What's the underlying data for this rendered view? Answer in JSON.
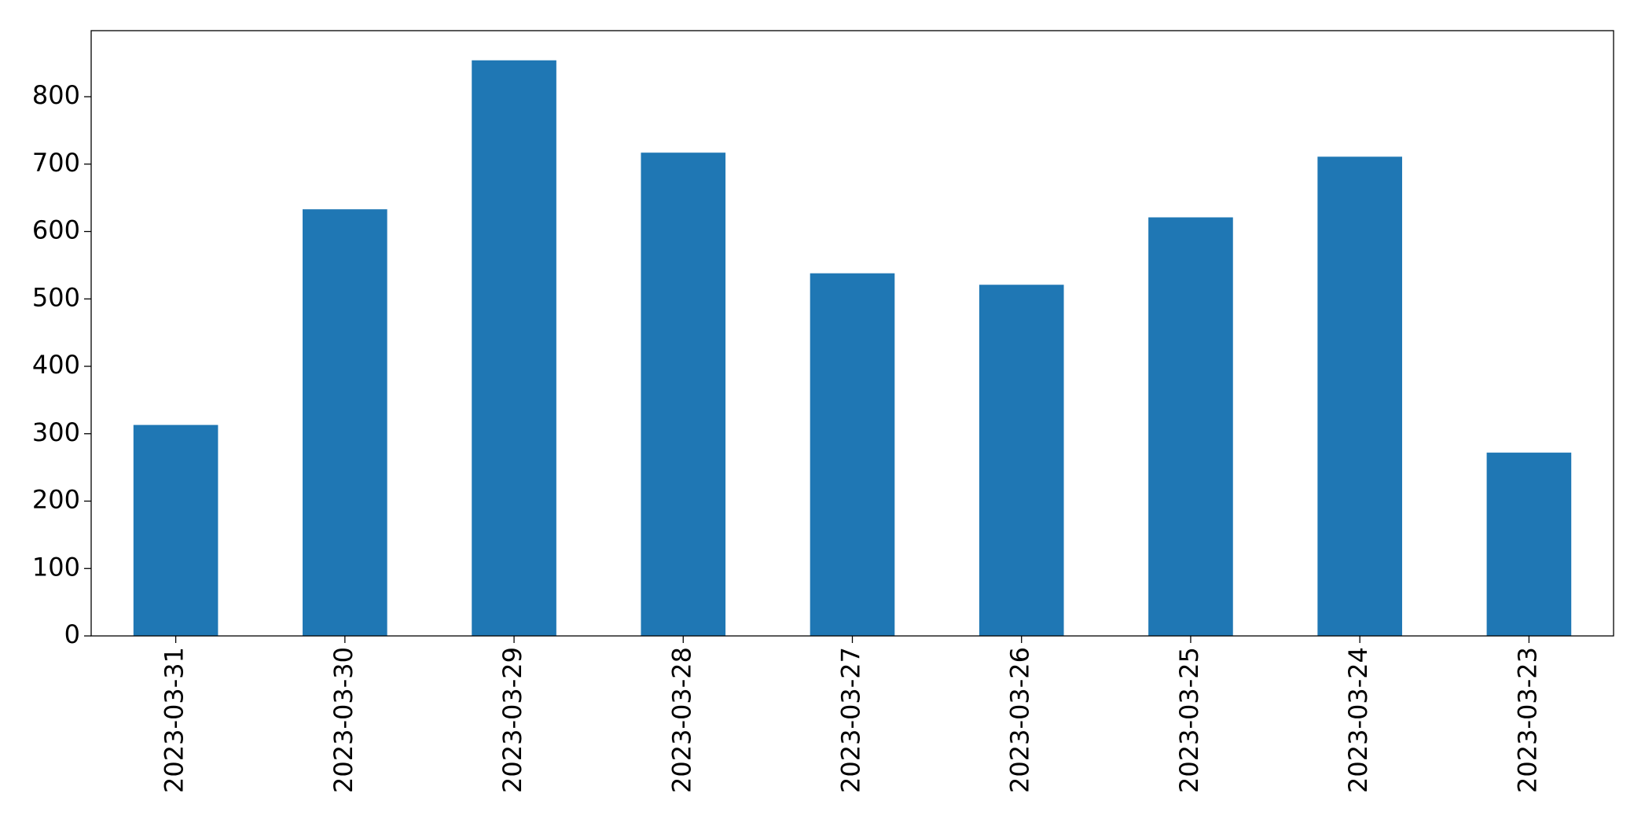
{
  "chart_data": {
    "type": "bar",
    "categories": [
      "2023-03-31",
      "2023-03-30",
      "2023-03-29",
      "2023-03-28",
      "2023-03-27",
      "2023-03-26",
      "2023-03-25",
      "2023-03-24",
      "2023-03-23"
    ],
    "values": [
      313,
      633,
      854,
      717,
      538,
      521,
      621,
      711,
      272
    ],
    "color": "#1f77b4",
    "ylim": [
      0,
      898
    ],
    "yticks": [
      0,
      100,
      200,
      300,
      400,
      500,
      600,
      700,
      800
    ],
    "grid": false
  }
}
